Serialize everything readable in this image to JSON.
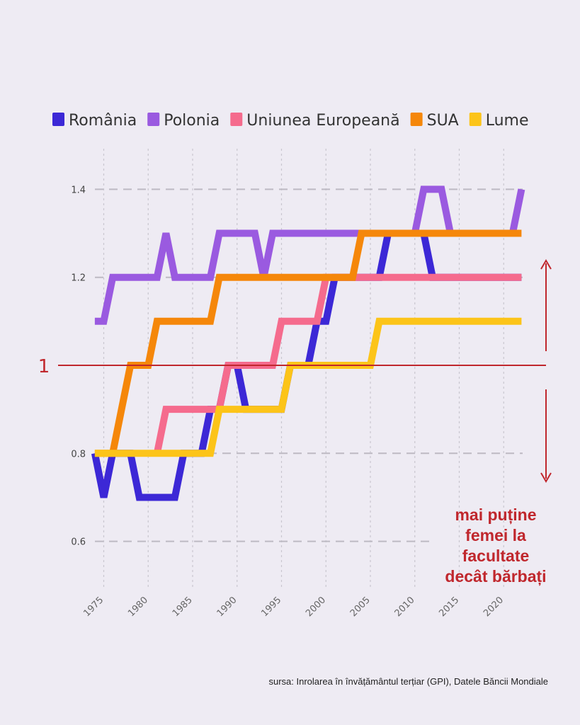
{
  "chart_data": {
    "type": "line",
    "legend_position": "top",
    "grid": true,
    "xlim": [
      1974,
      2022
    ],
    "ylim": [
      0.5,
      1.45
    ],
    "x_ticks": [
      1975,
      1980,
      1985,
      1990,
      1995,
      2000,
      2005,
      2010,
      2015,
      2020
    ],
    "y_ticks": [
      0.6,
      0.8,
      1.2,
      1.4
    ],
    "x": [
      1974,
      1975,
      1976,
      1977,
      1978,
      1979,
      1980,
      1981,
      1982,
      1983,
      1984,
      1985,
      1986,
      1987,
      1988,
      1989,
      1990,
      1991,
      1992,
      1993,
      1994,
      1995,
      1996,
      1997,
      1998,
      1999,
      2000,
      2001,
      2002,
      2003,
      2004,
      2005,
      2006,
      2007,
      2008,
      2009,
      2010,
      2011,
      2012,
      2013,
      2014,
      2015,
      2016,
      2017,
      2018,
      2019,
      2020,
      2021,
      2022
    ],
    "series": [
      {
        "name": "România",
        "color": "#3c28d6",
        "values": [
          0.8,
          0.7,
          0.8,
          0.8,
          0.8,
          0.7,
          0.7,
          0.7,
          0.7,
          0.7,
          0.8,
          0.8,
          0.8,
          0.9,
          0.9,
          1.0,
          1.0,
          0.9,
          0.9,
          0.9,
          0.9,
          0.9,
          1.0,
          1.0,
          1.0,
          1.1,
          1.1,
          1.2,
          1.2,
          1.2,
          1.2,
          1.2,
          1.2,
          1.3,
          1.3,
          1.3,
          1.3,
          1.3,
          1.2,
          1.2,
          1.2,
          1.2,
          1.2,
          1.2,
          1.2,
          1.2,
          1.2,
          1.2,
          1.2
        ]
      },
      {
        "name": "Polonia",
        "color": "#9a5ae0",
        "values": [
          1.1,
          1.1,
          1.2,
          1.2,
          1.2,
          1.2,
          1.2,
          1.2,
          1.3,
          1.2,
          1.2,
          1.2,
          1.2,
          1.2,
          1.3,
          1.3,
          1.3,
          1.3,
          1.3,
          1.2,
          1.3,
          1.3,
          1.3,
          1.3,
          1.3,
          1.3,
          1.3,
          1.3,
          1.3,
          1.3,
          1.3,
          1.3,
          1.3,
          1.3,
          1.3,
          1.3,
          1.3,
          1.4,
          1.4,
          1.4,
          1.3,
          1.3,
          1.3,
          1.3,
          1.3,
          1.3,
          1.3,
          1.3,
          1.4
        ]
      },
      {
        "name": "Uniunea Europeană",
        "color": "#f56b8d",
        "values": [
          null,
          null,
          null,
          null,
          null,
          null,
          null,
          0.8,
          0.9,
          0.9,
          0.9,
          0.9,
          0.9,
          0.9,
          0.9,
          1.0,
          1.0,
          1.0,
          1.0,
          1.0,
          1.0,
          1.1,
          1.1,
          1.1,
          1.1,
          1.1,
          1.2,
          1.2,
          1.2,
          1.2,
          1.2,
          1.2,
          1.2,
          1.2,
          1.2,
          1.2,
          1.2,
          1.2,
          1.2,
          1.2,
          1.2,
          1.2,
          1.2,
          1.2,
          1.2,
          1.2,
          1.2,
          1.2,
          1.2
        ]
      },
      {
        "name": "SUA",
        "color": "#f5870a",
        "values": [
          0.8,
          0.8,
          0.8,
          0.9,
          1.0,
          1.0,
          1.0,
          1.1,
          1.1,
          1.1,
          1.1,
          1.1,
          1.1,
          1.1,
          1.2,
          1.2,
          1.2,
          1.2,
          1.2,
          1.2,
          1.2,
          1.2,
          1.2,
          1.2,
          1.2,
          1.2,
          1.2,
          1.2,
          1.2,
          1.2,
          1.3,
          1.3,
          1.3,
          1.3,
          1.3,
          1.3,
          1.3,
          1.3,
          1.3,
          1.3,
          1.3,
          1.3,
          1.3,
          1.3,
          1.3,
          1.3,
          1.3,
          1.3,
          1.3
        ]
      },
      {
        "name": "Lume",
        "color": "#fcc419",
        "values": [
          0.8,
          0.8,
          0.8,
          0.8,
          0.8,
          0.8,
          0.8,
          0.8,
          0.8,
          0.8,
          0.8,
          0.8,
          0.8,
          0.8,
          0.9,
          0.9,
          0.9,
          0.9,
          0.9,
          0.9,
          0.9,
          0.9,
          1.0,
          1.0,
          1.0,
          1.0,
          1.0,
          1.0,
          1.0,
          1.0,
          1.0,
          1.0,
          1.1,
          1.1,
          1.1,
          1.1,
          1.1,
          1.1,
          1.1,
          1.1,
          1.1,
          1.1,
          1.1,
          1.1,
          1.1,
          1.1,
          1.1,
          1.1,
          1.1
        ]
      }
    ],
    "reference_line": {
      "value": 1,
      "label": "1",
      "color": "#c0272d"
    },
    "annotation": [
      "mai puține",
      "femei la",
      "facultate",
      "decât bărbați"
    ]
  },
  "source": "sursa: Inrolarea în învățământul terțiar (GPI), Datele Băncii Mondiale"
}
